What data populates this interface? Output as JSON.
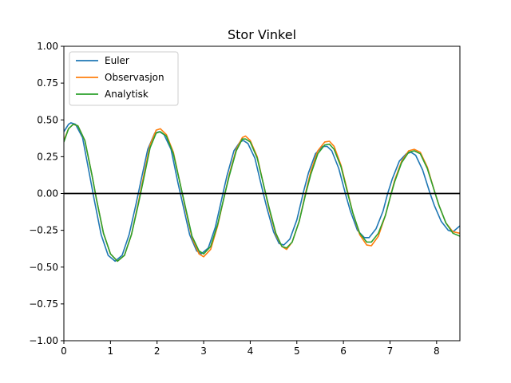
{
  "chart_data": {
    "type": "line",
    "title": "Stor Vinkel",
    "xlabel": "",
    "ylabel": "",
    "xlim": [
      0,
      8.5
    ],
    "ylim": [
      -1.0,
      1.0
    ],
    "xticks": [
      0,
      1,
      2,
      3,
      4,
      5,
      6,
      7,
      8
    ],
    "xtick_labels": [
      "0",
      "1",
      "2",
      "3",
      "4",
      "5",
      "6",
      "7",
      "8"
    ],
    "yticks": [
      -1.0,
      -0.75,
      -0.5,
      -0.25,
      0.0,
      0.25,
      0.5,
      0.75,
      1.0
    ],
    "ytick_labels": [
      "−1.00",
      "−0.75",
      "−0.50",
      "−0.25",
      "0.00",
      "0.25",
      "0.50",
      "0.75",
      "1.00"
    ],
    "grid": false,
    "legend_position": "top-left",
    "reference_line": {
      "y": 0,
      "color": "#000000"
    },
    "series": [
      {
        "name": "Euler",
        "color": "#1f77b4",
        "points": [
          [
            0,
            0.42
          ],
          [
            0.1,
            0.47
          ],
          [
            0.15,
            0.48
          ],
          [
            0.25,
            0.47
          ],
          [
            0.4,
            0.38
          ],
          [
            0.55,
            0.13
          ],
          [
            0.65,
            -0.04
          ],
          [
            0.8,
            -0.28
          ],
          [
            0.95,
            -0.42
          ],
          [
            1.1,
            -0.46
          ],
          [
            1.25,
            -0.42
          ],
          [
            1.4,
            -0.28
          ],
          [
            1.55,
            -0.07
          ],
          [
            1.65,
            0.08
          ],
          [
            1.8,
            0.3
          ],
          [
            1.95,
            0.41
          ],
          [
            2.05,
            0.42
          ],
          [
            2.15,
            0.4
          ],
          [
            2.3,
            0.3
          ],
          [
            2.45,
            0.07
          ],
          [
            2.55,
            -0.07
          ],
          [
            2.7,
            -0.28
          ],
          [
            2.85,
            -0.39
          ],
          [
            2.95,
            -0.41
          ],
          [
            3.1,
            -0.37
          ],
          [
            3.25,
            -0.23
          ],
          [
            3.4,
            -0.02
          ],
          [
            3.5,
            0.12
          ],
          [
            3.65,
            0.29
          ],
          [
            3.78,
            0.35
          ],
          [
            3.85,
            0.36
          ],
          [
            3.95,
            0.34
          ],
          [
            4.1,
            0.24
          ],
          [
            4.25,
            0.04
          ],
          [
            4.35,
            -0.09
          ],
          [
            4.5,
            -0.26
          ],
          [
            4.62,
            -0.34
          ],
          [
            4.72,
            -0.35
          ],
          [
            4.85,
            -0.31
          ],
          [
            5.0,
            -0.18
          ],
          [
            5.15,
            0.02
          ],
          [
            5.25,
            0.14
          ],
          [
            5.4,
            0.27
          ],
          [
            5.55,
            0.32
          ],
          [
            5.65,
            0.32
          ],
          [
            5.75,
            0.29
          ],
          [
            5.9,
            0.17
          ],
          [
            6.05,
            -0.01
          ],
          [
            6.15,
            -0.12
          ],
          [
            6.3,
            -0.25
          ],
          [
            6.45,
            -0.3
          ],
          [
            6.55,
            -0.3
          ],
          [
            6.7,
            -0.24
          ],
          [
            6.85,
            -0.12
          ],
          [
            6.95,
            0.0
          ],
          [
            7.05,
            0.1
          ],
          [
            7.2,
            0.22
          ],
          [
            7.35,
            0.27
          ],
          [
            7.45,
            0.28
          ],
          [
            7.55,
            0.26
          ],
          [
            7.7,
            0.16
          ],
          [
            7.85,
            0.01
          ],
          [
            7.95,
            -0.08
          ],
          [
            8.1,
            -0.19
          ],
          [
            8.25,
            -0.25
          ],
          [
            8.35,
            -0.26
          ],
          [
            8.5,
            -0.22
          ]
        ]
      },
      {
        "name": "Observasjon",
        "color": "#ff7f0e",
        "points": [
          [
            0,
            0.36
          ],
          [
            0.1,
            0.44
          ],
          [
            0.2,
            0.47
          ],
          [
            0.3,
            0.46
          ],
          [
            0.45,
            0.36
          ],
          [
            0.6,
            0.13
          ],
          [
            0.7,
            -0.04
          ],
          [
            0.85,
            -0.27
          ],
          [
            1.0,
            -0.41
          ],
          [
            1.15,
            -0.46
          ],
          [
            1.3,
            -0.42
          ],
          [
            1.45,
            -0.28
          ],
          [
            1.6,
            -0.06
          ],
          [
            1.7,
            0.1
          ],
          [
            1.85,
            0.33
          ],
          [
            1.98,
            0.43
          ],
          [
            2.07,
            0.44
          ],
          [
            2.2,
            0.4
          ],
          [
            2.35,
            0.28
          ],
          [
            2.5,
            0.06
          ],
          [
            2.6,
            -0.09
          ],
          [
            2.75,
            -0.3
          ],
          [
            2.9,
            -0.41
          ],
          [
            3.0,
            -0.43
          ],
          [
            3.15,
            -0.38
          ],
          [
            3.3,
            -0.22
          ],
          [
            3.45,
            -0.01
          ],
          [
            3.55,
            0.13
          ],
          [
            3.7,
            0.3
          ],
          [
            3.83,
            0.38
          ],
          [
            3.9,
            0.39
          ],
          [
            4.0,
            0.36
          ],
          [
            4.15,
            0.25
          ],
          [
            4.3,
            0.04
          ],
          [
            4.4,
            -0.1
          ],
          [
            4.55,
            -0.28
          ],
          [
            4.68,
            -0.36
          ],
          [
            4.78,
            -0.38
          ],
          [
            4.9,
            -0.33
          ],
          [
            5.05,
            -0.19
          ],
          [
            5.2,
            0.02
          ],
          [
            5.3,
            0.15
          ],
          [
            5.45,
            0.29
          ],
          [
            5.6,
            0.35
          ],
          [
            5.7,
            0.355
          ],
          [
            5.8,
            0.32
          ],
          [
            5.95,
            0.19
          ],
          [
            6.1,
            0.0
          ],
          [
            6.2,
            -0.13
          ],
          [
            6.35,
            -0.28
          ],
          [
            6.5,
            -0.35
          ],
          [
            6.6,
            -0.355
          ],
          [
            6.75,
            -0.29
          ],
          [
            6.9,
            -0.15
          ],
          [
            7.0,
            -0.03
          ],
          [
            7.1,
            0.09
          ],
          [
            7.25,
            0.22
          ],
          [
            7.4,
            0.29
          ],
          [
            7.52,
            0.3
          ],
          [
            7.65,
            0.28
          ],
          [
            7.8,
            0.18
          ],
          [
            7.95,
            0.02
          ],
          [
            8.05,
            -0.08
          ],
          [
            8.2,
            -0.2
          ],
          [
            8.35,
            -0.26
          ],
          [
            8.5,
            -0.27
          ]
        ]
      },
      {
        "name": "Analytisk",
        "color": "#2ca02c",
        "points": [
          [
            0,
            0.35
          ],
          [
            0.1,
            0.44
          ],
          [
            0.2,
            0.47
          ],
          [
            0.3,
            0.46
          ],
          [
            0.45,
            0.36
          ],
          [
            0.6,
            0.13
          ],
          [
            0.7,
            -0.04
          ],
          [
            0.85,
            -0.27
          ],
          [
            1.0,
            -0.41
          ],
          [
            1.15,
            -0.46
          ],
          [
            1.3,
            -0.42
          ],
          [
            1.45,
            -0.28
          ],
          [
            1.6,
            -0.07
          ],
          [
            1.7,
            0.08
          ],
          [
            1.85,
            0.31
          ],
          [
            1.98,
            0.41
          ],
          [
            2.07,
            0.42
          ],
          [
            2.2,
            0.39
          ],
          [
            2.35,
            0.27
          ],
          [
            2.5,
            0.06
          ],
          [
            2.6,
            -0.08
          ],
          [
            2.75,
            -0.29
          ],
          [
            2.9,
            -0.39
          ],
          [
            3.0,
            -0.41
          ],
          [
            3.15,
            -0.36
          ],
          [
            3.3,
            -0.21
          ],
          [
            3.45,
            -0.01
          ],
          [
            3.55,
            0.12
          ],
          [
            3.7,
            0.29
          ],
          [
            3.83,
            0.37
          ],
          [
            3.9,
            0.37
          ],
          [
            4.0,
            0.35
          ],
          [
            4.15,
            0.24
          ],
          [
            4.3,
            0.04
          ],
          [
            4.4,
            -0.09
          ],
          [
            4.55,
            -0.27
          ],
          [
            4.68,
            -0.36
          ],
          [
            4.78,
            -0.37
          ],
          [
            4.9,
            -0.33
          ],
          [
            5.05,
            -0.19
          ],
          [
            5.2,
            0.01
          ],
          [
            5.3,
            0.13
          ],
          [
            5.45,
            0.27
          ],
          [
            5.6,
            0.33
          ],
          [
            5.7,
            0.335
          ],
          [
            5.8,
            0.3
          ],
          [
            5.95,
            0.18
          ],
          [
            6.1,
            -0.01
          ],
          [
            6.2,
            -0.13
          ],
          [
            6.35,
            -0.27
          ],
          [
            6.5,
            -0.33
          ],
          [
            6.6,
            -0.33
          ],
          [
            6.75,
            -0.27
          ],
          [
            6.9,
            -0.15
          ],
          [
            7.0,
            -0.03
          ],
          [
            7.1,
            0.08
          ],
          [
            7.25,
            0.21
          ],
          [
            7.4,
            0.28
          ],
          [
            7.52,
            0.29
          ],
          [
            7.65,
            0.27
          ],
          [
            7.8,
            0.17
          ],
          [
            7.95,
            0.02
          ],
          [
            8.05,
            -0.08
          ],
          [
            8.2,
            -0.2
          ],
          [
            8.35,
            -0.27
          ],
          [
            8.5,
            -0.29
          ]
        ]
      }
    ]
  }
}
